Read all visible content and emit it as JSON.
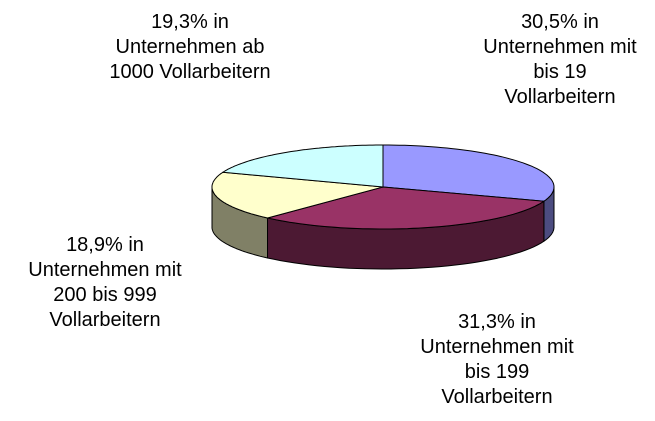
{
  "chart_data": {
    "type": "pie",
    "categories": [
      "in Unternehmen mit bis 19 Vollarbeitern",
      "in Unternehmen mit bis 199 Vollarbeitern",
      "in Unternehmen mit 200 bis 999 Vollarbeitern",
      "in Unternehmen ab 1000 Vollarbeitern"
    ],
    "values": [
      30.5,
      31.3,
      18.9,
      19.3
    ],
    "value_labels": [
      "30,5%",
      "31,3%",
      "18,9%",
      "19,3%"
    ],
    "colors": [
      "#9999ff",
      "#993366",
      "#ffffcc",
      "#ccffff"
    ],
    "side_colors": [
      "#4c4c80",
      "#4c1933",
      "#808066",
      "#668080"
    ]
  }
}
